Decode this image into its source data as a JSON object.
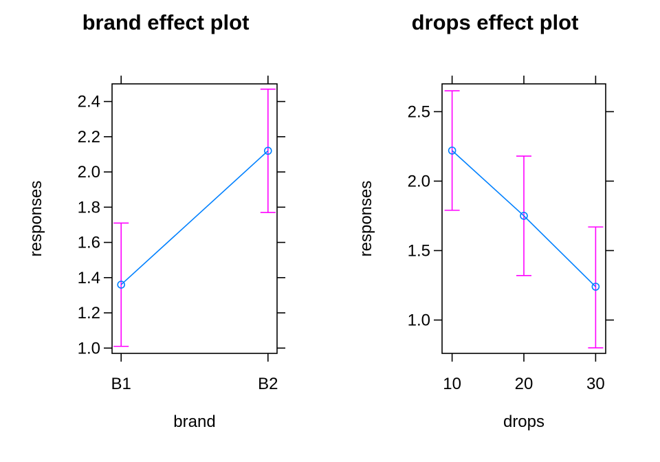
{
  "chart_data": [
    {
      "type": "line",
      "title": "brand effect plot",
      "xlabel": "brand",
      "ylabel": "responses",
      "categories": [
        "B1",
        "B2"
      ],
      "values": [
        1.36,
        2.12
      ],
      "lower": [
        1.01,
        1.77
      ],
      "upper": [
        1.71,
        2.47
      ],
      "ylim": [
        0.97,
        2.5
      ],
      "yticks": [
        1.0,
        1.2,
        1.4,
        1.6,
        1.8,
        2.0,
        2.2,
        2.4
      ],
      "ytick_labels": [
        "1.0",
        "1.2",
        "1.4",
        "1.6",
        "1.8",
        "2.0",
        "2.2",
        "2.4"
      ],
      "x_type": "categorical",
      "line_color": "#0080ff",
      "ci_color": "#ff00ff"
    },
    {
      "type": "line",
      "title": "drops effect plot",
      "xlabel": "drops",
      "ylabel": "responses",
      "categories": [
        "10",
        "20",
        "30"
      ],
      "x": [
        10,
        20,
        30
      ],
      "values": [
        2.22,
        1.75,
        1.24
      ],
      "lower": [
        1.79,
        1.32,
        0.8
      ],
      "upper": [
        2.65,
        2.18,
        1.67
      ],
      "ylim": [
        0.76,
        2.7
      ],
      "yticks": [
        1.0,
        1.5,
        2.0,
        2.5
      ],
      "ytick_labels": [
        "1.0",
        "1.5",
        "2.0",
        "2.5"
      ],
      "xlim": [
        8.6,
        31.4
      ],
      "x_type": "numeric",
      "line_color": "#0080ff",
      "ci_color": "#ff00ff"
    }
  ]
}
